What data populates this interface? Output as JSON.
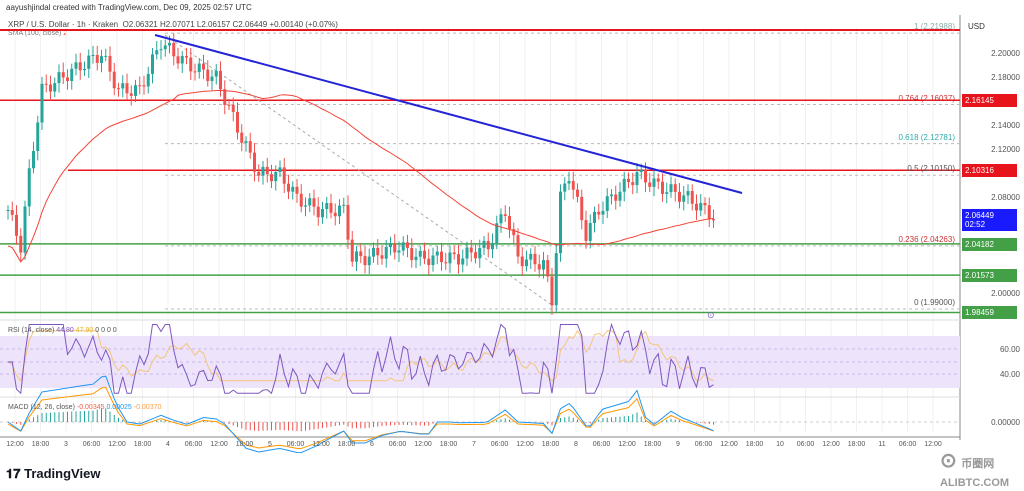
{
  "header": {
    "credit": "aayushjindal created with TradingView.com, Dec 09, 2025 02:57 UTC",
    "symbol": "XRP / U.S. Dollar · 1h · Kraken",
    "open": "O2.06321",
    "high": "H2.07071",
    "low": "L2.06157",
    "close": "C2.06449",
    "change": "+0.00140 (+0.07%)",
    "sma_label": "SMA (100, close)",
    "sma_val": "2"
  },
  "currency": "USD",
  "price_axis": [
    "2.20000",
    "2.18000",
    "2.14000",
    "2.12000",
    "2.08000",
    "2.00000"
  ],
  "price_tags": [
    {
      "label": "2.16145",
      "color": "#e8141c",
      "price": 2.16145
    },
    {
      "label": "2.10316",
      "color": "#e8141c",
      "price": 2.10316
    },
    {
      "label": "2.04182",
      "color": "#43a047",
      "price": 2.04182
    },
    {
      "label": "2.01573",
      "color": "#43a047",
      "price": 2.01573
    },
    {
      "label": "1.98459",
      "color": "#43a047",
      "price": 1.98459
    }
  ],
  "last_price": {
    "label": "2.06449",
    "countdown": "02:52",
    "color": "#1a1aff",
    "price": 2.06449
  },
  "fib": [
    {
      "label": "1 (2.21988)",
      "price": 2.21988,
      "color": "#8aa"
    },
    {
      "label": "0.764 (2.16037)",
      "price": 2.16037,
      "color": "#c33"
    },
    {
      "label": "0.618 (2.12781)",
      "price": 2.12781,
      "color": "#3aa"
    },
    {
      "label": "0.5 (2.10150)",
      "price": 2.1015,
      "color": "#555"
    },
    {
      "label": "0.236 (2.04263)",
      "price": 2.04263,
      "color": "#c33"
    },
    {
      "label": "0 (1.99000)",
      "price": 1.99,
      "color": "#555"
    }
  ],
  "rsi": {
    "label": "RSI (14, close)",
    "value": "44.80",
    "ma": "47.90",
    "extras": [
      "0",
      "0",
      "0",
      "0"
    ],
    "axis": [
      "60.00",
      "40.00"
    ]
  },
  "macd": {
    "label": "MACD (12, 26, close)",
    "macd": "-0.00345",
    "signal": "0.00025",
    "hist": "-0.00370",
    "axis": "0.00000"
  },
  "time_axis": [
    "12:00",
    "18:00",
    "3",
    "06:00",
    "12:00",
    "18:00",
    "4",
    "06:00",
    "12:00",
    "18:00",
    "5",
    "06:00",
    "12:00",
    "18:00",
    "6",
    "06:00",
    "12:00",
    "18:00",
    "7",
    "06:00",
    "12:00",
    "18:00",
    "8",
    "06:00",
    "12:00",
    "18:00",
    "9",
    "06:00",
    "12:00",
    "18:00",
    "10",
    "06:00",
    "12:00",
    "18:00",
    "11",
    "06:00",
    "12:00"
  ],
  "brand": "TradingView",
  "watermark": "币圈网 ALIBTC.COM",
  "chart_data": {
    "type": "candlestick",
    "price_path": [
      [
        0,
        2.07
      ],
      [
        3,
        2.04
      ],
      [
        5,
        2.1
      ],
      [
        8,
        2.17
      ],
      [
        17,
        2.19
      ],
      [
        22,
        2.2
      ],
      [
        26,
        2.17
      ],
      [
        31,
        2.17
      ],
      [
        36,
        2.21
      ],
      [
        39,
        2.2
      ],
      [
        43,
        2.19
      ],
      [
        49,
        2.18
      ],
      [
        55,
        2.13
      ],
      [
        59,
        2.1
      ],
      [
        64,
        2.1
      ],
      [
        68,
        2.08
      ],
      [
        73,
        2.07
      ],
      [
        79,
        2.07
      ],
      [
        81,
        2.03
      ],
      [
        84,
        2.03
      ],
      [
        92,
        2.04
      ],
      [
        97,
        2.03
      ],
      [
        106,
        2.03
      ],
      [
        113,
        2.04
      ],
      [
        117,
        2.07
      ],
      [
        120,
        2.03
      ],
      [
        126,
        2.025
      ],
      [
        128,
        1.995
      ],
      [
        130,
        2.08
      ],
      [
        132,
        2.1
      ],
      [
        136,
        2.05
      ],
      [
        139,
        2.07
      ],
      [
        148,
        2.1
      ],
      [
        153,
        2.09
      ],
      [
        160,
        2.08
      ],
      [
        166,
        2.0645
      ]
    ]
  }
}
